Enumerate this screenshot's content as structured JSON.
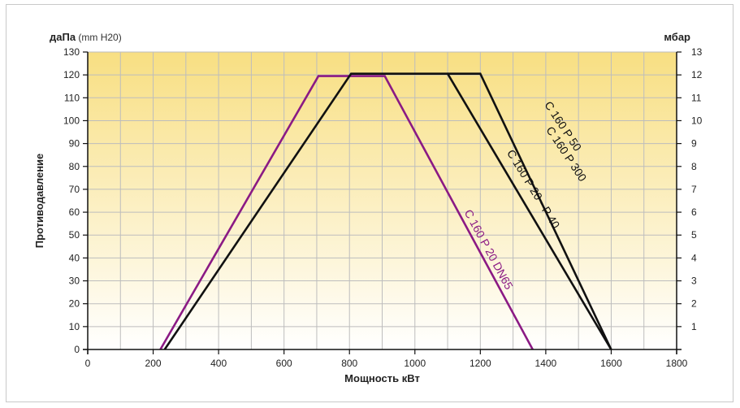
{
  "chart_data": {
    "type": "line",
    "y_left_label": {
      "bold": "даПа",
      "unit": " (mm H20)"
    },
    "y_right_label": "мбар",
    "ylabel": "Противодавление",
    "xlabel": "Мощность кВт",
    "xlim": [
      0,
      1800
    ],
    "ylim": [
      0,
      130
    ],
    "x_ticks": [
      0,
      200,
      400,
      600,
      800,
      1000,
      1200,
      1400,
      1600,
      1800
    ],
    "y_ticks": [
      0,
      10,
      20,
      30,
      40,
      50,
      60,
      70,
      80,
      90,
      100,
      110,
      120,
      130
    ],
    "y_right_ticks": [
      1,
      2,
      3,
      4,
      5,
      6,
      7,
      8,
      9,
      10,
      11,
      12,
      13
    ],
    "grid": true,
    "background_gradient": {
      "top": "#f8df82",
      "bottom": "#ffffff"
    },
    "series": [
      {
        "name": "C 160 P 20 DN65",
        "color": "#8b1a84",
        "points": [
          [
            222,
            0
          ],
          [
            705,
            119.5
          ],
          [
            908,
            119.5
          ],
          [
            1360,
            0
          ]
        ]
      },
      {
        "name": "C 160 P 20 - P 40",
        "color": "#111111",
        "points": [
          [
            235,
            0
          ],
          [
            805,
            120.5
          ],
          [
            1100,
            120.5
          ],
          [
            1600,
            0
          ]
        ]
      },
      {
        "name": "C 160 P 50 / C 160 P 300",
        "color": "#111111",
        "points": [
          [
            1100,
            120.5
          ],
          [
            1200,
            120.5
          ],
          [
            1600,
            0
          ]
        ]
      }
    ],
    "annotations": [
      {
        "id": "dn65",
        "text": "C 160 P 20 DN65",
        "color": "#8b1a84"
      },
      {
        "id": "p20p40",
        "text": "C 160 P 20 - P 40",
        "color": "#111111"
      },
      {
        "id": "p50",
        "text": "C 160 P 50",
        "color": "#111111"
      },
      {
        "id": "p300",
        "text": "C 160 P 300",
        "color": "#111111"
      }
    ]
  }
}
